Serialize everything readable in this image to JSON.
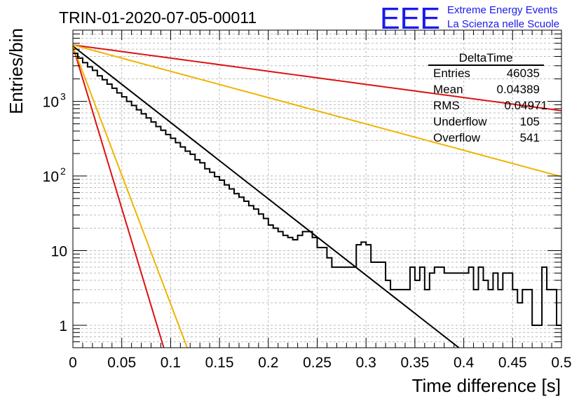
{
  "chart_data": {
    "type": "line",
    "title": "TRIN-01-2020-07-05-00011",
    "xlabel": "Time difference [s]",
    "ylabel": "Entries/bin",
    "xlim": [
      0,
      0.5
    ],
    "ylim": [
      0.5,
      9000
    ],
    "yscale": "log",
    "grid": true,
    "x_ticks": [
      "0",
      "0.05",
      "0.1",
      "0.15",
      "0.2",
      "0.25",
      "0.3",
      "0.35",
      "0.4",
      "0.45",
      "0.5"
    ],
    "y_ticks": [
      {
        "value": 1,
        "label": "1"
      },
      {
        "value": 10,
        "label": "10"
      },
      {
        "value": 100,
        "label": "10",
        "exponent": "2"
      },
      {
        "value": 1000,
        "label": "10",
        "exponent": "3"
      }
    ],
    "histogram": {
      "name": "DeltaTime",
      "color": "#000000",
      "bin_width": 0.005,
      "counts": [
        4400,
        3800,
        3300,
        2900,
        2600,
        2200,
        1950,
        1700,
        1500,
        1300,
        1150,
        1000,
        880,
        770,
        680,
        600,
        530,
        460,
        410,
        360,
        320,
        280,
        245,
        215,
        195,
        165,
        150,
        125,
        112,
        98,
        88,
        76,
        67,
        58,
        52,
        46,
        40,
        36,
        31,
        27,
        22,
        20,
        18,
        16,
        15,
        14,
        16,
        18,
        18,
        15,
        11,
        11,
        8,
        6,
        6,
        6,
        6,
        6,
        12,
        13,
        12,
        7,
        7,
        7,
        4,
        3,
        3,
        3,
        3,
        6,
        4,
        6,
        3,
        5,
        6,
        6,
        5,
        5,
        5,
        5,
        5,
        6,
        3,
        6,
        4,
        3,
        5,
        3,
        5,
        5,
        3,
        2,
        3,
        3,
        1,
        1,
        6,
        3,
        3,
        1
      ]
    },
    "fits": [
      {
        "color": "#000000",
        "x": [
          0,
          0.395
        ],
        "y": [
          5500,
          0.5
        ]
      },
      {
        "color": "#dd1111",
        "x": [
          0,
          0.5
        ],
        "y": [
          5700,
          750
        ]
      },
      {
        "color": "#f0b400",
        "x": [
          0,
          0.5
        ],
        "y": [
          5700,
          98
        ]
      },
      {
        "color": "#dd1111",
        "x": [
          0,
          0.093
        ],
        "y": [
          5500,
          0.5
        ]
      },
      {
        "color": "#f0b400",
        "x": [
          0,
          0.117
        ],
        "y": [
          5500,
          0.5
        ]
      }
    ]
  },
  "stats_box": {
    "title": "DeltaTime",
    "rows": [
      {
        "label": "Entries",
        "value": "46035"
      },
      {
        "label": "Mean",
        "value": "0.04389"
      },
      {
        "label": "RMS",
        "value": "0.04971"
      },
      {
        "label": "Underflow",
        "value": "105"
      },
      {
        "label": "Overflow",
        "value": "541"
      }
    ]
  },
  "logo": {
    "text": "EEE",
    "line1": "Extreme Energy Events",
    "line2": "La Scienza nelle Scuole",
    "color": "#1a1aee"
  }
}
